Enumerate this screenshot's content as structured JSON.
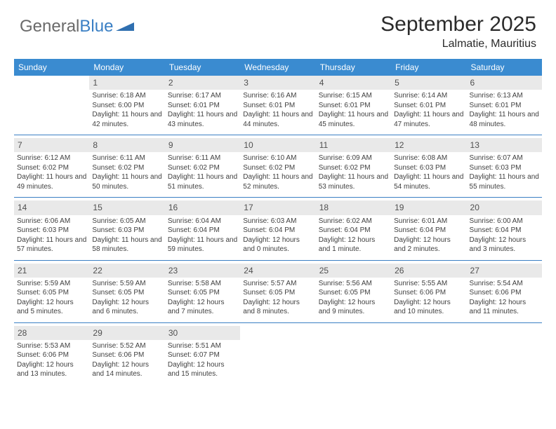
{
  "logo": {
    "text_gray": "General",
    "text_blue": "Blue",
    "accent_color": "#3a8bd0"
  },
  "header": {
    "title": "September 2025",
    "location": "Lalmatie, Mauritius"
  },
  "colors": {
    "header_bg": "#3a8bd0",
    "header_text": "#ffffff",
    "daynum_bg": "#e9e9e9",
    "rule": "#3a7fc4",
    "body_text": "#3f3f3f"
  },
  "day_of_week": [
    "Sunday",
    "Monday",
    "Tuesday",
    "Wednesday",
    "Thursday",
    "Friday",
    "Saturday"
  ],
  "weeks": [
    [
      {
        "n": "",
        "empty": true
      },
      {
        "n": "1",
        "sr": "Sunrise: 6:18 AM",
        "ss": "Sunset: 6:00 PM",
        "dl": "Daylight: 11 hours and 42 minutes."
      },
      {
        "n": "2",
        "sr": "Sunrise: 6:17 AM",
        "ss": "Sunset: 6:01 PM",
        "dl": "Daylight: 11 hours and 43 minutes."
      },
      {
        "n": "3",
        "sr": "Sunrise: 6:16 AM",
        "ss": "Sunset: 6:01 PM",
        "dl": "Daylight: 11 hours and 44 minutes."
      },
      {
        "n": "4",
        "sr": "Sunrise: 6:15 AM",
        "ss": "Sunset: 6:01 PM",
        "dl": "Daylight: 11 hours and 45 minutes."
      },
      {
        "n": "5",
        "sr": "Sunrise: 6:14 AM",
        "ss": "Sunset: 6:01 PM",
        "dl": "Daylight: 11 hours and 47 minutes."
      },
      {
        "n": "6",
        "sr": "Sunrise: 6:13 AM",
        "ss": "Sunset: 6:01 PM",
        "dl": "Daylight: 11 hours and 48 minutes."
      }
    ],
    [
      {
        "n": "7",
        "sr": "Sunrise: 6:12 AM",
        "ss": "Sunset: 6:02 PM",
        "dl": "Daylight: 11 hours and 49 minutes."
      },
      {
        "n": "8",
        "sr": "Sunrise: 6:11 AM",
        "ss": "Sunset: 6:02 PM",
        "dl": "Daylight: 11 hours and 50 minutes."
      },
      {
        "n": "9",
        "sr": "Sunrise: 6:11 AM",
        "ss": "Sunset: 6:02 PM",
        "dl": "Daylight: 11 hours and 51 minutes."
      },
      {
        "n": "10",
        "sr": "Sunrise: 6:10 AM",
        "ss": "Sunset: 6:02 PM",
        "dl": "Daylight: 11 hours and 52 minutes."
      },
      {
        "n": "11",
        "sr": "Sunrise: 6:09 AM",
        "ss": "Sunset: 6:02 PM",
        "dl": "Daylight: 11 hours and 53 minutes."
      },
      {
        "n": "12",
        "sr": "Sunrise: 6:08 AM",
        "ss": "Sunset: 6:03 PM",
        "dl": "Daylight: 11 hours and 54 minutes."
      },
      {
        "n": "13",
        "sr": "Sunrise: 6:07 AM",
        "ss": "Sunset: 6:03 PM",
        "dl": "Daylight: 11 hours and 55 minutes."
      }
    ],
    [
      {
        "n": "14",
        "sr": "Sunrise: 6:06 AM",
        "ss": "Sunset: 6:03 PM",
        "dl": "Daylight: 11 hours and 57 minutes."
      },
      {
        "n": "15",
        "sr": "Sunrise: 6:05 AM",
        "ss": "Sunset: 6:03 PM",
        "dl": "Daylight: 11 hours and 58 minutes."
      },
      {
        "n": "16",
        "sr": "Sunrise: 6:04 AM",
        "ss": "Sunset: 6:04 PM",
        "dl": "Daylight: 11 hours and 59 minutes."
      },
      {
        "n": "17",
        "sr": "Sunrise: 6:03 AM",
        "ss": "Sunset: 6:04 PM",
        "dl": "Daylight: 12 hours and 0 minutes."
      },
      {
        "n": "18",
        "sr": "Sunrise: 6:02 AM",
        "ss": "Sunset: 6:04 PM",
        "dl": "Daylight: 12 hours and 1 minute."
      },
      {
        "n": "19",
        "sr": "Sunrise: 6:01 AM",
        "ss": "Sunset: 6:04 PM",
        "dl": "Daylight: 12 hours and 2 minutes."
      },
      {
        "n": "20",
        "sr": "Sunrise: 6:00 AM",
        "ss": "Sunset: 6:04 PM",
        "dl": "Daylight: 12 hours and 3 minutes."
      }
    ],
    [
      {
        "n": "21",
        "sr": "Sunrise: 5:59 AM",
        "ss": "Sunset: 6:05 PM",
        "dl": "Daylight: 12 hours and 5 minutes."
      },
      {
        "n": "22",
        "sr": "Sunrise: 5:59 AM",
        "ss": "Sunset: 6:05 PM",
        "dl": "Daylight: 12 hours and 6 minutes."
      },
      {
        "n": "23",
        "sr": "Sunrise: 5:58 AM",
        "ss": "Sunset: 6:05 PM",
        "dl": "Daylight: 12 hours and 7 minutes."
      },
      {
        "n": "24",
        "sr": "Sunrise: 5:57 AM",
        "ss": "Sunset: 6:05 PM",
        "dl": "Daylight: 12 hours and 8 minutes."
      },
      {
        "n": "25",
        "sr": "Sunrise: 5:56 AM",
        "ss": "Sunset: 6:05 PM",
        "dl": "Daylight: 12 hours and 9 minutes."
      },
      {
        "n": "26",
        "sr": "Sunrise: 5:55 AM",
        "ss": "Sunset: 6:06 PM",
        "dl": "Daylight: 12 hours and 10 minutes."
      },
      {
        "n": "27",
        "sr": "Sunrise: 5:54 AM",
        "ss": "Sunset: 6:06 PM",
        "dl": "Daylight: 12 hours and 11 minutes."
      }
    ],
    [
      {
        "n": "28",
        "sr": "Sunrise: 5:53 AM",
        "ss": "Sunset: 6:06 PM",
        "dl": "Daylight: 12 hours and 13 minutes."
      },
      {
        "n": "29",
        "sr": "Sunrise: 5:52 AM",
        "ss": "Sunset: 6:06 PM",
        "dl": "Daylight: 12 hours and 14 minutes."
      },
      {
        "n": "30",
        "sr": "Sunrise: 5:51 AM",
        "ss": "Sunset: 6:07 PM",
        "dl": "Daylight: 12 hours and 15 minutes."
      },
      {
        "n": "",
        "empty": true
      },
      {
        "n": "",
        "empty": true
      },
      {
        "n": "",
        "empty": true
      },
      {
        "n": "",
        "empty": true
      }
    ]
  ]
}
